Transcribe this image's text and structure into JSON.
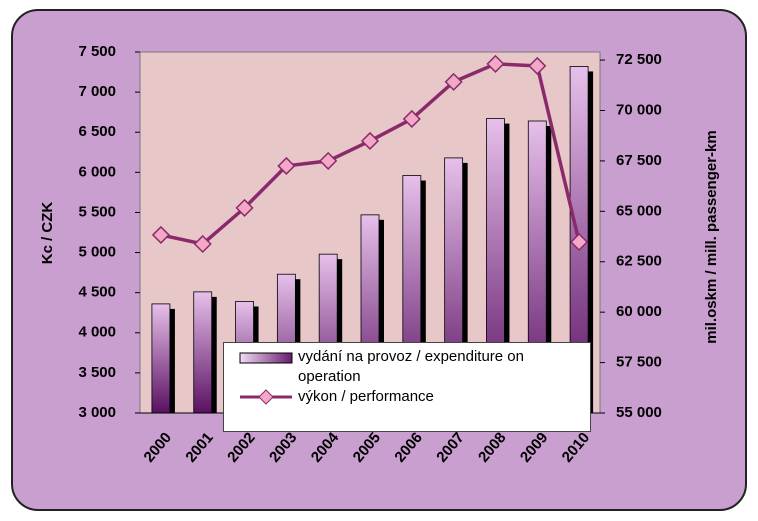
{
  "chart_data": {
    "type": "bar-line",
    "categories": [
      "2000",
      "2001",
      "2002",
      "2003",
      "2004",
      "2005",
      "2006",
      "2007",
      "2008",
      "2009",
      "2010"
    ],
    "y_axis_label": "Kc / CZK",
    "y2_axis_label": "mil.oskm / mill. passenger-km",
    "ylim": [
      3000,
      7500
    ],
    "yticks": [
      {
        "value": 3000,
        "label": "3 000"
      },
      {
        "value": 3500,
        "label": "3 500"
      },
      {
        "value": 4000,
        "label": "4 000"
      },
      {
        "value": 4500,
        "label": "4 500"
      },
      {
        "value": 5000,
        "label": "5 000"
      },
      {
        "value": 5500,
        "label": "5 500"
      },
      {
        "value": 6000,
        "label": "6 000"
      },
      {
        "value": 6500,
        "label": "6 500"
      },
      {
        "value": 7000,
        "label": "7 000"
      },
      {
        "value": 7500,
        "label": "7 500"
      }
    ],
    "y2lim": [
      55000,
      72900
    ],
    "y2ticks": [
      {
        "value": 55000,
        "label": "55 000"
      },
      {
        "value": 57500,
        "label": "57 500"
      },
      {
        "value": 60000,
        "label": "60 000"
      },
      {
        "value": 62500,
        "label": "62 500"
      },
      {
        "value": 65000,
        "label": "65 000"
      },
      {
        "value": 67500,
        "label": "67 500"
      },
      {
        "value": 70000,
        "label": "70 000"
      },
      {
        "value": 72500,
        "label": "72 500"
      }
    ],
    "series": [
      {
        "name": "vydání na provoz / expenditure on operation",
        "type": "bar",
        "color": "#7a2a80",
        "values": [
          4360,
          4510,
          4390,
          4730,
          4980,
          5470,
          5960,
          6180,
          6670,
          6640,
          7320
        ]
      },
      {
        "name": "výkon / performance",
        "type": "line",
        "axis": "y2",
        "color": "#8b2a6a",
        "values": [
          63830,
          63380,
          65170,
          67250,
          67500,
          68490,
          69580,
          71420,
          72310,
          72210,
          63480
        ]
      }
    ]
  }
}
